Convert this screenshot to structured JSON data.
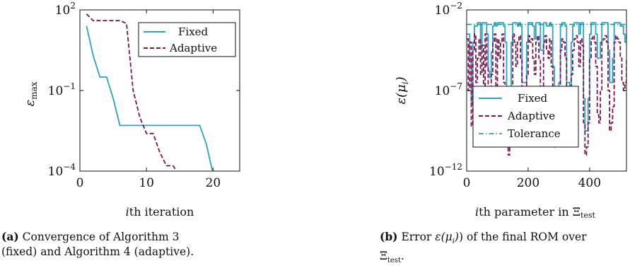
{
  "colors": {
    "fixed": "#2aa3bf",
    "adaptive": "#7a1550",
    "tolerance": "#1a8c8c"
  },
  "chart_data": [
    {
      "type": "line",
      "log_y": true,
      "xlabel_prefix": "i",
      "xlabel_rest": "th iteration",
      "ylabel": "ε",
      "ylabel_sub": "max",
      "xlim": [
        0,
        24
      ],
      "ylim_exp": [
        -4,
        2
      ],
      "xticks": [
        0,
        10,
        20
      ],
      "yticks": [
        {
          "exp": 2,
          "label": "10",
          "sup": "2"
        },
        {
          "exp": -1,
          "label": "10",
          "sup": "−1"
        },
        {
          "exp": -4,
          "label": "10",
          "sup": "−4"
        }
      ],
      "grid": false,
      "legend_position": "top-right",
      "series": [
        {
          "name": "Fixed",
          "style": "solid",
          "x": [
            1,
            2,
            3,
            4,
            5,
            6,
            7,
            8,
            9,
            10,
            11,
            12,
            13,
            14,
            15,
            16,
            17,
            18,
            19,
            20,
            21,
            22,
            23
          ],
          "log10_y": [
            1.4,
            0.3,
            -0.5,
            -0.5,
            -1.3,
            -2.3,
            -2.3,
            -2.3,
            -2.3,
            -2.3,
            -2.3,
            -2.3,
            -2.3,
            -2.3,
            -2.3,
            -2.3,
            -2.3,
            -2.3,
            -3.0,
            -4.1,
            -4.1,
            -4.1,
            -4.1
          ]
        },
        {
          "name": "Adaptive",
          "style": "dashed",
          "x": [
            1,
            2,
            3,
            4,
            5,
            6,
            7,
            8,
            9,
            10,
            11,
            12,
            13,
            14,
            15,
            16,
            17,
            18,
            19,
            20,
            21,
            22,
            23,
            24
          ],
          "log10_y": [
            1.85,
            1.6,
            1.6,
            1.6,
            1.6,
            1.6,
            1.5,
            -1.0,
            -2.0,
            -2.6,
            -2.6,
            -3.3,
            -3.8,
            -3.8,
            -4.2,
            -4.2,
            -4.2,
            -4.7,
            -4.7,
            -4.2,
            -4.2,
            -4.6,
            -4.6,
            -4.6
          ]
        }
      ]
    },
    {
      "type": "line",
      "log_y": true,
      "xlabel_prefix": "i",
      "xlabel_rest": "th parameter in Ξ",
      "xlabel_sub": "test",
      "ylabel": "ε(μ",
      "ylabel_sub": "i",
      "ylabel_end": ")",
      "xlim": [
        0,
        520
      ],
      "ylim_exp": [
        -12,
        -2
      ],
      "xticks": [
        0,
        200,
        400
      ],
      "yticks": [
        {
          "exp": -2,
          "label": "10",
          "sup": "−2"
        },
        {
          "exp": -7,
          "label": "10",
          "sup": "−7"
        },
        {
          "exp": -12,
          "label": "10",
          "sup": "−12"
        }
      ],
      "grid": false,
      "legend_position": "bottom-left",
      "series": [
        {
          "name": "Fixed",
          "style": "solid",
          "x": [
            0,
            5,
            10,
            15,
            20,
            25,
            30,
            35,
            40,
            45,
            50,
            55,
            60,
            65,
            70,
            75,
            80,
            85,
            90,
            95,
            100,
            105,
            110,
            115,
            120,
            125,
            130,
            135,
            140,
            145,
            150,
            155,
            160,
            165,
            170,
            175,
            180,
            185,
            190,
            195,
            200,
            205,
            210,
            215,
            220,
            225,
            230,
            235,
            240,
            245,
            250,
            255,
            260,
            265,
            270,
            275,
            280,
            285,
            290,
            295,
            300,
            305,
            310,
            315,
            320,
            325,
            330,
            335,
            340,
            345,
            350,
            355,
            360,
            365,
            370,
            375,
            380,
            385,
            390,
            395,
            400,
            405,
            410,
            415,
            420,
            425,
            430,
            435,
            440,
            445,
            450,
            455,
            460,
            465,
            470,
            475,
            480,
            485,
            490,
            495,
            500,
            505,
            510,
            515,
            520
          ],
          "log10_y": [
            -3.5,
            -3.5,
            -5.0,
            -7.8,
            -4.0,
            -3.0,
            -3.0,
            -2.8,
            -2.8,
            -4.4,
            -2.8,
            -2.8,
            -2.8,
            -3.5,
            -5.8,
            -6.2,
            -4.6,
            -3.0,
            -2.8,
            -3.0,
            -2.8,
            -2.8,
            -2.8,
            -2.8,
            -3.0,
            -4.0,
            -7.5,
            -7.5,
            -7.8,
            -4.0,
            -2.8,
            -2.8,
            -2.8,
            -3.0,
            -2.8,
            -3.0,
            -6.5,
            -6.5,
            -6.5,
            -4.0,
            -2.8,
            -2.8,
            -2.8,
            -3.0,
            -3.8,
            -2.8,
            -2.8,
            -2.8,
            -4.5,
            -4.5,
            -2.8,
            -2.8,
            -3.0,
            -3.0,
            -2.8,
            -3.0,
            -5.5,
            -8.5,
            -8.5,
            -8.0,
            -6.5,
            -3.0,
            -2.8,
            -2.8,
            -3.0,
            -6.5,
            -6.5,
            -7.0,
            -4.0,
            -3.0,
            -2.8,
            -2.8,
            -2.8,
            -3.5,
            -2.8,
            -2.8,
            -7.5,
            -9.5,
            -9.5,
            -7.5,
            -3.5,
            -2.8,
            -2.8,
            -2.8,
            -3.5,
            -5.0,
            -5.0,
            -4.0,
            -2.8,
            -2.8,
            -2.8,
            -2.8,
            -4.5,
            -6.5,
            -6.5,
            -5.0,
            -2.8,
            -2.8,
            -2.8,
            -2.8,
            -3.0,
            -3.0,
            -3.5,
            -4.0,
            -3.5
          ]
        },
        {
          "name": "Adaptive",
          "style": "dashed",
          "x": [
            0,
            5,
            10,
            15,
            20,
            25,
            30,
            35,
            40,
            45,
            50,
            55,
            60,
            65,
            70,
            75,
            80,
            85,
            90,
            95,
            100,
            105,
            110,
            115,
            120,
            125,
            130,
            135,
            140,
            145,
            150,
            155,
            160,
            165,
            170,
            175,
            180,
            185,
            190,
            195,
            200,
            205,
            210,
            215,
            220,
            225,
            230,
            235,
            240,
            245,
            250,
            255,
            260,
            265,
            270,
            275,
            280,
            285,
            290,
            295,
            300,
            305,
            310,
            315,
            320,
            325,
            330,
            335,
            340,
            345,
            350,
            355,
            360,
            365,
            370,
            375,
            380,
            385,
            390,
            395,
            400,
            405,
            410,
            415,
            420,
            425,
            430,
            435,
            440,
            445,
            450,
            455,
            460,
            465,
            470,
            475,
            480,
            485,
            490,
            495,
            500,
            505,
            510,
            515,
            520
          ],
          "log10_y": [
            -3.8,
            -7.0,
            -4.0,
            -9.2,
            -4.5,
            -3.5,
            -6.5,
            -5.0,
            -3.8,
            -6.0,
            -4.2,
            -7.5,
            -3.5,
            -5.5,
            -9.5,
            -10.5,
            -6.0,
            -4.0,
            -3.5,
            -7.0,
            -3.8,
            -5.0,
            -4.0,
            -3.5,
            -6.5,
            -7.5,
            -10.0,
            -11.0,
            -10.5,
            -7.0,
            -3.5,
            -4.0,
            -5.5,
            -4.0,
            -3.6,
            -5.0,
            -8.5,
            -9.5,
            -8.5,
            -6.0,
            -3.6,
            -4.0,
            -3.8,
            -5.0,
            -6.0,
            -4.0,
            -3.6,
            -5.0,
            -8.0,
            -7.0,
            -4.0,
            -3.6,
            -4.5,
            -5.0,
            -3.8,
            -5.5,
            -9.5,
            -10.5,
            -10.0,
            -9.0,
            -8.0,
            -4.5,
            -3.8,
            -4.0,
            -5.0,
            -8.5,
            -9.0,
            -9.5,
            -6.0,
            -4.5,
            -3.8,
            -3.6,
            -4.0,
            -5.5,
            -3.8,
            -4.2,
            -9.0,
            -11.0,
            -10.5,
            -9.0,
            -5.0,
            -3.8,
            -3.6,
            -4.0,
            -5.5,
            -8.5,
            -9.0,
            -7.0,
            -4.0,
            -3.8,
            -3.6,
            -4.0,
            -7.0,
            -9.5,
            -9.0,
            -8.0,
            -4.0,
            -3.6,
            -3.8,
            -4.0,
            -5.0,
            -6.5,
            -7.0,
            -6.5,
            -5.0
          ]
        },
        {
          "name": "Tolerance",
          "style": "dashdot",
          "x": [
            0,
            520
          ],
          "log10_y": [
            -2.9,
            -2.9
          ]
        }
      ]
    }
  ],
  "captions": [
    {
      "label": "(a)",
      "line1": "Convergence of Algorithm 3",
      "line2": "(fixed) and Algorithm 4 (adaptive)."
    },
    {
      "label": "(b)",
      "line1a": "Error ε(μ",
      "line1sub": "i",
      "line1b": ") of the final ROM over",
      "line2": "Ξ",
      "line2sub": "test",
      "line2end": "."
    }
  ]
}
